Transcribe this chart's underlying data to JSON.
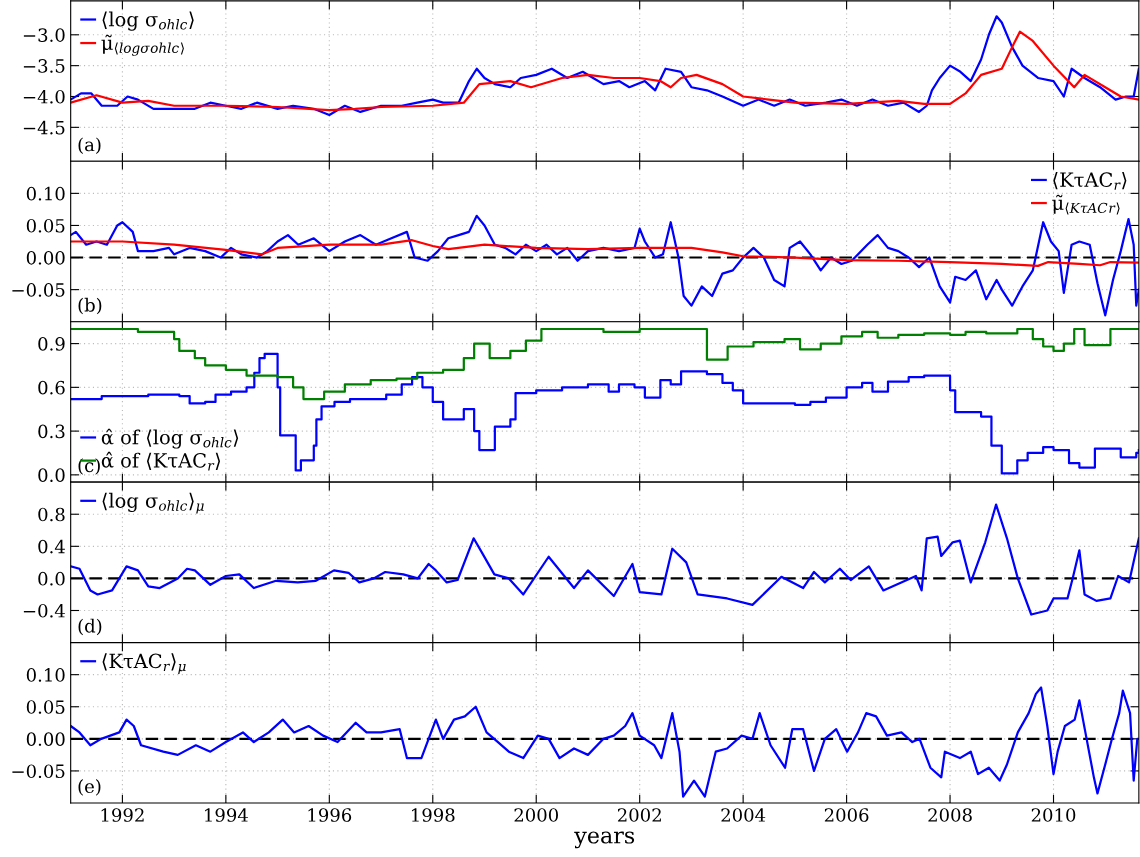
{
  "chart_data": [
    {
      "type": "line",
      "xlim": [
        1991.0,
        2011.65
      ],
      "xticks": [
        1992,
        1994,
        1996,
        1998,
        2000,
        2002,
        2004,
        2006,
        2008,
        2010
      ],
      "ylim": [
        -5.05,
        -2.45
      ],
      "yticks": [
        {
          "value": -3.0,
          "label": "−3.0"
        },
        {
          "value": -3.5,
          "label": "−3.5"
        },
        {
          "value": -4.0,
          "label": "−4.0"
        },
        {
          "value": -4.5,
          "label": "−4.5"
        }
      ],
      "grid": true,
      "legend": "top left",
      "tick_labels": "y",
      "annotations": [
        "(a)"
      ],
      "series": [
        {
          "name": "⟨log σ$_{ohlc}$⟩",
          "color": "#0000ff",
          "x": [
            1991.0,
            1991.2,
            1991.4,
            1991.6,
            1991.9,
            1992.1,
            1992.3,
            1992.6,
            1993.0,
            1993.4,
            1993.7,
            1994.0,
            1994.3,
            1994.6,
            1995.0,
            1995.3,
            1995.7,
            1996.0,
            1996.3,
            1996.6,
            1997.0,
            1997.4,
            1997.7,
            1998.0,
            1998.2,
            1998.5,
            1998.7,
            1998.85,
            1999.0,
            1999.2,
            1999.5,
            1999.7,
            2000.0,
            2000.3,
            2000.6,
            2000.9,
            2001.1,
            2001.3,
            2001.6,
            2001.8,
            2002.1,
            2002.3,
            2002.5,
            2002.8,
            2003.0,
            2003.3,
            2003.6,
            2004.0,
            2004.3,
            2004.6,
            2004.9,
            2005.2,
            2005.6,
            2005.9,
            2006.2,
            2006.5,
            2006.8,
            2007.1,
            2007.4,
            2007.55,
            2007.65,
            2007.8,
            2008.0,
            2008.2,
            2008.4,
            2008.6,
            2008.75,
            2008.9,
            2009.0,
            2009.2,
            2009.4,
            2009.7,
            2010.0,
            2010.2,
            2010.35,
            2010.6,
            2010.9,
            2011.2,
            2011.4,
            2011.55,
            2011.65
          ],
          "values": [
            -4.05,
            -3.95,
            -3.95,
            -4.15,
            -4.15,
            -4.0,
            -4.05,
            -4.2,
            -4.2,
            -4.2,
            -4.1,
            -4.15,
            -4.2,
            -4.1,
            -4.2,
            -4.15,
            -4.2,
            -4.3,
            -4.15,
            -4.25,
            -4.15,
            -4.15,
            -4.1,
            -4.05,
            -4.1,
            -4.1,
            -3.75,
            -3.55,
            -3.7,
            -3.8,
            -3.85,
            -3.7,
            -3.65,
            -3.55,
            -3.7,
            -3.6,
            -3.7,
            -3.8,
            -3.75,
            -3.85,
            -3.75,
            -3.9,
            -3.55,
            -3.6,
            -3.85,
            -3.9,
            -4.0,
            -4.15,
            -4.05,
            -4.15,
            -4.05,
            -4.15,
            -4.1,
            -4.05,
            -4.15,
            -4.05,
            -4.15,
            -4.1,
            -4.25,
            -4.15,
            -3.9,
            -3.7,
            -3.5,
            -3.6,
            -3.75,
            -3.4,
            -3.0,
            -2.7,
            -2.8,
            -3.2,
            -3.5,
            -3.7,
            -3.75,
            -4.0,
            -3.55,
            -3.7,
            -3.85,
            -4.05,
            -4.0,
            -4.0,
            -3.55
          ]
        },
        {
          "name": "μ̃$_{⟨logσ}$$_{ohlc}$$_{⟩}$",
          "color": "#ff0000",
          "x": [
            1991.0,
            1991.5,
            1992.0,
            1992.5,
            1993.0,
            1994.0,
            1995.0,
            1996.0,
            1996.5,
            1997.0,
            1998.0,
            1998.6,
            1998.9,
            1999.5,
            1999.9,
            2000.5,
            2001.0,
            2001.5,
            2002.0,
            2002.4,
            2002.6,
            2002.8,
            2003.1,
            2003.6,
            2004.0,
            2004.5,
            2005.0,
            2006.0,
            2007.0,
            2007.5,
            2008.0,
            2008.3,
            2008.6,
            2009.0,
            2009.2,
            2009.35,
            2009.6,
            2010.0,
            2010.4,
            2010.6,
            2011.0,
            2011.3,
            2011.65
          ],
          "values": [
            -4.1,
            -3.98,
            -4.1,
            -4.07,
            -4.15,
            -4.15,
            -4.17,
            -4.22,
            -4.2,
            -4.17,
            -4.15,
            -4.1,
            -3.8,
            -3.75,
            -3.85,
            -3.7,
            -3.65,
            -3.7,
            -3.7,
            -3.75,
            -3.85,
            -3.7,
            -3.65,
            -3.8,
            -4.0,
            -4.05,
            -4.1,
            -4.12,
            -4.07,
            -4.12,
            -4.12,
            -3.95,
            -3.65,
            -3.55,
            -3.2,
            -2.95,
            -3.1,
            -3.5,
            -3.85,
            -3.65,
            -3.85,
            -4.0,
            -4.05
          ]
        }
      ]
    },
    {
      "type": "line",
      "xlim": [
        1991.0,
        2011.65
      ],
      "xticks": [
        1992,
        1994,
        1996,
        1998,
        2000,
        2002,
        2004,
        2006,
        2008,
        2010
      ],
      "ylim": [
        -0.1,
        0.15
      ],
      "yticks": [
        {
          "value": 0.1,
          "label": "0.10"
        },
        {
          "value": 0.05,
          "label": "0.05"
        },
        {
          "value": 0.0,
          "label": "0.00"
        },
        {
          "value": -0.05,
          "label": "−0.05"
        }
      ],
      "grid": true,
      "legend": "top right",
      "tick_labels": "y",
      "annotations": [
        "(b)"
      ],
      "ref_lines": [
        {
          "axis": "y",
          "value": 0,
          "color": "#000000",
          "line_style": "dashed"
        }
      ],
      "series": [
        {
          "name": "⟨KτAC$_{r}$⟩",
          "color": "#0000ff",
          "x": [
            1991.0,
            1991.1,
            1991.3,
            1991.5,
            1991.7,
            1991.9,
            1992.0,
            1992.2,
            1992.3,
            1992.6,
            1992.9,
            1993.0,
            1993.3,
            1993.6,
            1993.9,
            1994.1,
            1994.3,
            1994.6,
            1994.8,
            1995.0,
            1995.2,
            1995.4,
            1995.7,
            1996.0,
            1996.3,
            1996.6,
            1996.9,
            1997.2,
            1997.5,
            1997.65,
            1997.9,
            1998.1,
            1998.3,
            1998.5,
            1998.7,
            1998.85,
            1999.0,
            1999.2,
            1999.4,
            1999.6,
            1999.8,
            2000.0,
            2000.2,
            2000.4,
            2000.6,
            2000.8,
            2001.0,
            2001.3,
            2001.6,
            2001.9,
            2002.0,
            2002.1,
            2002.3,
            2002.45,
            2002.6,
            2002.75,
            2002.85,
            2003.0,
            2003.2,
            2003.4,
            2003.6,
            2003.8,
            2004.0,
            2004.2,
            2004.4,
            2004.6,
            2004.8,
            2004.9,
            2005.1,
            2005.3,
            2005.5,
            2005.7,
            2005.9,
            2006.1,
            2006.4,
            2006.6,
            2006.8,
            2007.0,
            2007.2,
            2007.4,
            2007.6,
            2007.8,
            2008.0,
            2008.1,
            2008.3,
            2008.5,
            2008.7,
            2008.9,
            2009.0,
            2009.2,
            2009.4,
            2009.6,
            2009.8,
            2009.95,
            2010.1,
            2010.2,
            2010.35,
            2010.5,
            2010.7,
            2010.85,
            2011.0,
            2011.15,
            2011.3,
            2011.45,
            2011.55,
            2011.6,
            2011.65
          ],
          "values": [
            0.035,
            0.04,
            0.02,
            0.025,
            0.02,
            0.05,
            0.055,
            0.04,
            0.01,
            0.01,
            0.015,
            0.005,
            0.015,
            0.01,
            0.0,
            0.015,
            0.005,
            0.0,
            0.01,
            0.025,
            0.035,
            0.02,
            0.03,
            0.01,
            0.025,
            0.035,
            0.02,
            0.03,
            0.04,
            0.0,
            -0.005,
            0.01,
            0.03,
            0.035,
            0.04,
            0.065,
            0.05,
            0.02,
            0.015,
            0.005,
            0.02,
            0.01,
            0.02,
            0.005,
            0.015,
            -0.005,
            0.01,
            0.015,
            0.01,
            0.015,
            0.045,
            0.025,
            0.0,
            0.005,
            0.055,
            0.0,
            -0.06,
            -0.075,
            -0.045,
            -0.06,
            -0.025,
            -0.02,
            0.0,
            0.015,
            0.0,
            -0.035,
            -0.045,
            0.015,
            0.025,
            0.005,
            -0.02,
            0.0,
            -0.01,
            -0.005,
            0.02,
            0.035,
            0.015,
            0.01,
            0.0,
            -0.015,
            0.0,
            -0.045,
            -0.07,
            -0.03,
            -0.035,
            -0.02,
            -0.065,
            -0.035,
            -0.05,
            -0.075,
            -0.045,
            -0.02,
            0.055,
            0.025,
            0.01,
            -0.055,
            0.02,
            0.025,
            0.02,
            -0.04,
            -0.09,
            -0.035,
            0.01,
            0.06,
            0.02,
            -0.075,
            -0.05
          ]
        },
        {
          "name": "μ̃$_{⟨KτAC}$$_{r}$$_{⟩}$",
          "color": "#ff0000",
          "x": [
            1991.0,
            1992.0,
            1993.0,
            1994.0,
            1994.7,
            1995.0,
            1996.0,
            1997.0,
            1997.6,
            1998.0,
            1998.3,
            1999.0,
            2000.0,
            2001.0,
            2002.0,
            2003.0,
            2003.6,
            2004.0,
            2005.0,
            2006.0,
            2007.0,
            2008.0,
            2009.0,
            2009.7,
            2009.9,
            2010.5,
            2010.9,
            2011.1,
            2011.65
          ],
          "values": [
            0.025,
            0.025,
            0.02,
            0.012,
            0.005,
            0.015,
            0.02,
            0.02,
            0.027,
            0.018,
            0.013,
            0.02,
            0.015,
            0.013,
            0.015,
            0.015,
            0.008,
            0.002,
            0.0,
            -0.004,
            -0.005,
            -0.007,
            -0.01,
            -0.013,
            -0.007,
            -0.01,
            -0.012,
            -0.007,
            -0.008
          ]
        }
      ]
    },
    {
      "type": "step",
      "xlim": [
        1991.0,
        2011.65
      ],
      "xticks": [
        1992,
        1994,
        1996,
        1998,
        2000,
        2002,
        2004,
        2006,
        2008,
        2010
      ],
      "ylim": [
        -0.05,
        1.05
      ],
      "yticks": [
        {
          "value": 0.9,
          "label": "0.9"
        },
        {
          "value": 0.6,
          "label": "0.6"
        },
        {
          "value": 0.3,
          "label": "0.3"
        },
        {
          "value": 0.0,
          "label": "0.0"
        }
      ],
      "grid": true,
      "legend": "bottom left",
      "tick_labels": "y",
      "annotations": [
        "(c)"
      ],
      "series": [
        {
          "name": "α̂ of ⟨log σ$_{ohlc}$⟩",
          "color": "#0000ff",
          "x": [
            1991.0,
            1991.6,
            1992.5,
            1993.1,
            1993.3,
            1993.6,
            1993.8,
            1994.1,
            1994.4,
            1994.55,
            1994.65,
            1994.75,
            1995.0,
            1995.05,
            1995.35,
            1995.45,
            1995.7,
            1995.75,
            1995.85,
            1996.1,
            1996.4,
            1996.8,
            1997.1,
            1997.4,
            1997.6,
            1997.8,
            1998.0,
            1998.2,
            1998.6,
            1998.8,
            1998.9,
            1999.2,
            1999.5,
            1999.6,
            2000.0,
            2000.5,
            2001.0,
            2001.4,
            2001.6,
            2001.9,
            2002.1,
            2002.4,
            2002.6,
            2002.8,
            2003.3,
            2003.6,
            2003.8,
            2004.0,
            2005.0,
            2005.3,
            2005.6,
            2006.0,
            2006.3,
            2006.5,
            2006.8,
            2007.2,
            2007.5,
            2008.0,
            2008.1,
            2008.6,
            2008.8,
            2009.0,
            2009.3,
            2009.5,
            2009.8,
            2010.0,
            2010.3,
            2010.5,
            2010.8,
            2011.3,
            2011.6,
            2011.65
          ],
          "values": [
            0.52,
            0.54,
            0.55,
            0.54,
            0.49,
            0.5,
            0.55,
            0.57,
            0.6,
            0.7,
            0.8,
            0.83,
            0.6,
            0.27,
            0.03,
            0.1,
            0.2,
            0.38,
            0.47,
            0.5,
            0.52,
            0.52,
            0.55,
            0.62,
            0.67,
            0.6,
            0.5,
            0.38,
            0.45,
            0.3,
            0.17,
            0.33,
            0.38,
            0.56,
            0.58,
            0.6,
            0.62,
            0.57,
            0.62,
            0.6,
            0.53,
            0.65,
            0.62,
            0.71,
            0.69,
            0.63,
            0.58,
            0.49,
            0.48,
            0.5,
            0.53,
            0.6,
            0.63,
            0.57,
            0.64,
            0.67,
            0.68,
            0.58,
            0.43,
            0.4,
            0.2,
            0.01,
            0.1,
            0.15,
            0.19,
            0.17,
            0.08,
            0.05,
            0.18,
            0.12,
            0.15,
            0.17
          ]
        },
        {
          "name": "α̂ of ⟨KτAC$_{r}$⟩",
          "color": "#008000",
          "x": [
            1991.0,
            1992.3,
            1992.8,
            1993.0,
            1993.1,
            1993.4,
            1993.6,
            1994.0,
            1994.4,
            1995.0,
            1995.3,
            1995.5,
            1995.9,
            1996.3,
            1996.8,
            1997.3,
            1997.7,
            1998.2,
            1998.6,
            1998.8,
            1999.1,
            1999.5,
            1999.8,
            2000.1,
            2001.3,
            2002.0,
            2003.3,
            2003.7,
            2004.2,
            2004.8,
            2005.1,
            2005.5,
            2005.9,
            2006.3,
            2006.6,
            2007.0,
            2007.5,
            2008.0,
            2008.3,
            2008.7,
            2009.3,
            2009.6,
            2009.8,
            2010.0,
            2010.2,
            2010.4,
            2010.6,
            2011.1,
            2011.65
          ],
          "values": [
            1.0,
            0.98,
            0.98,
            0.93,
            0.85,
            0.8,
            0.75,
            0.72,
            0.68,
            0.67,
            0.6,
            0.52,
            0.57,
            0.62,
            0.65,
            0.66,
            0.7,
            0.72,
            0.8,
            0.9,
            0.8,
            0.85,
            0.92,
            1.0,
            0.98,
            1.0,
            0.79,
            0.88,
            0.91,
            0.93,
            0.86,
            0.9,
            0.95,
            0.98,
            0.94,
            0.96,
            0.97,
            0.96,
            0.98,
            0.97,
            1.0,
            0.93,
            0.88,
            0.85,
            0.9,
            1.0,
            0.89,
            1.0,
            1.0
          ]
        }
      ]
    },
    {
      "type": "line",
      "xlim": [
        1991.0,
        2011.65
      ],
      "xticks": [
        1992,
        1994,
        1996,
        1998,
        2000,
        2002,
        2004,
        2006,
        2008,
        2010
      ],
      "ylim": [
        -0.8,
        1.2
      ],
      "yticks": [
        {
          "value": 0.8,
          "label": "0.8"
        },
        {
          "value": 0.4,
          "label": "0.4"
        },
        {
          "value": 0.0,
          "label": "0.0"
        },
        {
          "value": -0.4,
          "label": "−0.4"
        }
      ],
      "grid": true,
      "legend": "top left",
      "tick_labels": "y",
      "annotations": [
        "(d)"
      ],
      "ref_lines": [
        {
          "axis": "y",
          "value": 0,
          "color": "#000000",
          "line_style": "dashed"
        }
      ],
      "series": [
        {
          "name": "⟨log σ$_{ohlc}$⟩$_{μ}$",
          "color": "#0000ff",
          "x": [
            1991.0,
            1991.17,
            1991.38,
            1991.52,
            1991.8,
            1992.08,
            1992.3,
            1992.5,
            1992.72,
            1993.07,
            1993.25,
            1993.4,
            1993.7,
            1994.0,
            1994.26,
            1994.54,
            1994.97,
            1995.39,
            1995.74,
            1996.09,
            1996.37,
            1996.58,
            1996.86,
            1997.08,
            1997.43,
            1997.71,
            1997.92,
            1998.06,
            1998.27,
            1998.48,
            1998.79,
            1998.97,
            1999.19,
            1999.47,
            1999.75,
            2000.24,
            2000.73,
            2001.0,
            2001.5,
            2001.86,
            2002.0,
            2002.42,
            2002.63,
            2002.9,
            2003.12,
            2003.69,
            2004.18,
            2004.74,
            2005.16,
            2005.37,
            2005.58,
            2005.87,
            2006.08,
            2006.43,
            2006.71,
            2007.34,
            2007.45,
            2007.55,
            2007.76,
            2007.83,
            2008.05,
            2008.19,
            2008.4,
            2008.68,
            2008.89,
            2009.1,
            2009.31,
            2009.57,
            2009.88,
            2010.0,
            2010.27,
            2010.37,
            2010.5,
            2010.6,
            2010.83,
            2011.1,
            2011.25,
            2011.46,
            2011.65
          ],
          "values": [
            0.15,
            0.12,
            -0.15,
            -0.2,
            -0.15,
            0.15,
            0.1,
            -0.1,
            -0.12,
            0.0,
            0.12,
            0.1,
            -0.08,
            0.03,
            0.05,
            -0.12,
            -0.03,
            -0.05,
            -0.03,
            0.1,
            0.07,
            -0.05,
            0.0,
            0.08,
            0.05,
            0.0,
            0.18,
            0.1,
            -0.05,
            -0.02,
            0.5,
            0.3,
            0.05,
            0.0,
            -0.2,
            0.27,
            -0.12,
            0.1,
            -0.22,
            0.18,
            -0.17,
            -0.2,
            0.37,
            0.2,
            -0.2,
            -0.25,
            -0.33,
            0.02,
            -0.12,
            0.08,
            -0.05,
            0.12,
            -0.02,
            0.15,
            -0.15,
            0.03,
            -0.15,
            0.5,
            0.52,
            0.28,
            0.45,
            0.47,
            -0.05,
            0.45,
            0.92,
            0.5,
            0.0,
            -0.45,
            -0.4,
            -0.25,
            -0.25,
            0.0,
            0.35,
            -0.2,
            -0.28,
            -0.25,
            0.03,
            -0.05,
            0.5
          ]
        }
      ]
    },
    {
      "type": "line",
      "xlim": [
        1991.0,
        2011.65
      ],
      "xticks": [
        1992,
        1994,
        1996,
        1998,
        2000,
        2002,
        2004,
        2006,
        2008,
        2010
      ],
      "ylim": [
        -0.1,
        0.15
      ],
      "yticks": [
        {
          "value": 0.1,
          "label": "0.10"
        },
        {
          "value": 0.05,
          "label": "0.05"
        },
        {
          "value": 0.0,
          "label": "0.00"
        },
        {
          "value": -0.05,
          "label": "−0.05"
        }
      ],
      "grid": true,
      "legend": "top left",
      "xlabel": "years",
      "annotations": [
        "(e)"
      ],
      "ref_lines": [
        {
          "axis": "y",
          "value": 0,
          "color": "#000000",
          "line_style": "dashed"
        }
      ],
      "series": [
        {
          "name": "⟨KτAC$_{r}$⟩$_{μ}$",
          "color": "#0000ff",
          "x": [
            1991.0,
            1991.17,
            1991.38,
            1991.59,
            1991.94,
            1992.08,
            1992.22,
            1992.36,
            1992.79,
            1993.07,
            1993.42,
            1993.7,
            1994.0,
            1994.33,
            1994.54,
            1994.83,
            1995.1,
            1995.32,
            1995.6,
            1995.88,
            1996.16,
            1996.51,
            1996.72,
            1997.0,
            1997.36,
            1997.5,
            1997.78,
            1998.06,
            1998.2,
            1998.41,
            1998.62,
            1998.83,
            1999.04,
            1999.26,
            1999.47,
            1999.75,
            2000.03,
            2000.24,
            2000.45,
            2000.73,
            2001.0,
            2001.3,
            2001.5,
            2001.72,
            2001.86,
            2002.0,
            2002.28,
            2002.42,
            2002.63,
            2002.77,
            2002.84,
            2003.05,
            2003.26,
            2003.47,
            2003.69,
            2003.97,
            2004.18,
            2004.32,
            2004.53,
            2004.81,
            2004.95,
            2005.16,
            2005.37,
            2005.58,
            2005.8,
            2006.01,
            2006.22,
            2006.38,
            2006.57,
            2006.78,
            2007.06,
            2007.27,
            2007.41,
            2007.62,
            2007.83,
            2007.9,
            2008.19,
            2008.4,
            2008.54,
            2008.75,
            2008.96,
            2009.1,
            2009.31,
            2009.52,
            2009.66,
            2009.76,
            2009.88,
            2010.0,
            2010.08,
            2010.22,
            2010.41,
            2010.5,
            2010.64,
            2010.78,
            2010.85,
            2011.0,
            2011.13,
            2011.27,
            2011.34,
            2011.48,
            2011.55,
            2011.62,
            2011.65
          ],
          "values": [
            0.02,
            0.01,
            -0.01,
            0.0,
            0.01,
            0.03,
            0.02,
            -0.01,
            -0.02,
            -0.025,
            -0.01,
            -0.02,
            -0.005,
            0.01,
            -0.005,
            0.01,
            0.03,
            0.01,
            0.02,
            0.005,
            -0.005,
            0.025,
            0.01,
            0.01,
            0.015,
            -0.03,
            -0.03,
            0.03,
            0.0,
            0.03,
            0.035,
            0.05,
            0.01,
            -0.005,
            -0.02,
            -0.03,
            0.005,
            0.0,
            -0.03,
            -0.015,
            -0.025,
            0.0,
            0.005,
            0.02,
            0.04,
            0.005,
            -0.01,
            -0.03,
            0.04,
            -0.02,
            -0.09,
            -0.065,
            -0.09,
            -0.02,
            -0.015,
            0.005,
            0.0,
            0.04,
            -0.01,
            -0.045,
            0.015,
            0.015,
            -0.05,
            0.0,
            0.015,
            -0.02,
            0.01,
            0.04,
            0.035,
            0.005,
            0.01,
            -0.005,
            0.0,
            -0.045,
            -0.06,
            -0.02,
            -0.03,
            -0.02,
            -0.055,
            -0.045,
            -0.065,
            -0.04,
            0.01,
            0.04,
            0.07,
            0.08,
            0.02,
            -0.055,
            -0.02,
            0.02,
            0.03,
            0.06,
            0.0,
            -0.06,
            -0.085,
            -0.04,
            0.0,
            0.04,
            0.075,
            0.04,
            -0.065,
            0.0,
            0.0
          ]
        }
      ]
    }
  ]
}
